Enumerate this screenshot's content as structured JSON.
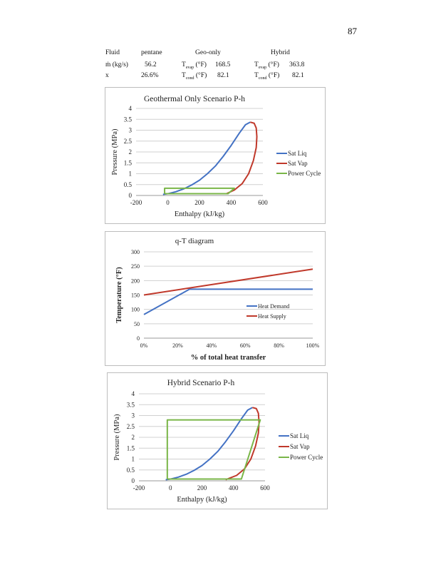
{
  "page_number": "87",
  "table": {
    "r1": {
      "c1": "Fluid",
      "c2": "pentane",
      "c3": "Geo-only",
      "c4": "Hybrid"
    },
    "r2": {
      "c1": "ṁ (kg/s)",
      "c2": "56.2",
      "geo_label": "T",
      "geo_sub": "evap",
      "geo_unit": " (°F)",
      "geo_val": "168.5",
      "hyb_label": "T",
      "hyb_sub": "evap",
      "hyb_unit": " (°F)",
      "hyb_val": "363.8"
    },
    "r3": {
      "c1": "x",
      "c2": "26.6%",
      "geo_label": "T",
      "geo_sub": "cond",
      "geo_unit": " (°F)",
      "geo_val": "82.1",
      "hyb_label": "T",
      "hyb_sub": "cond",
      "hyb_unit": " (°F)",
      "hyb_val": "82.1"
    }
  },
  "chart_data": [
    {
      "type": "line",
      "title": "Geothermal Only Scenario P-h",
      "xlabel": "Enthalpy (kJ/kg)",
      "ylabel": "Pressure (MPa)",
      "xlim": [
        -200,
        600
      ],
      "ylim": [
        0,
        4
      ],
      "xticks": [
        -200,
        0,
        200,
        400,
        600
      ],
      "yticks": [
        0,
        0.5,
        1,
        1.5,
        2,
        2.5,
        3,
        3.5,
        4
      ],
      "grid": true,
      "legend": "right",
      "series": [
        {
          "name": "Sat Liq",
          "color": "#4472c4",
          "points": [
            [
              -30,
              0.05
            ],
            [
              0,
              0.08
            ],
            [
              50,
              0.17
            ],
            [
              100,
              0.3
            ],
            [
              150,
              0.48
            ],
            [
              200,
              0.7
            ],
            [
              250,
              1.0
            ],
            [
              300,
              1.35
            ],
            [
              350,
              1.8
            ],
            [
              400,
              2.3
            ],
            [
              450,
              2.85
            ],
            [
              490,
              3.25
            ],
            [
              520,
              3.37
            ]
          ]
        },
        {
          "name": "Sat Vap",
          "color": "#c0392b",
          "points": [
            [
              520,
              3.37
            ],
            [
              545,
              3.32
            ],
            [
              558,
              3.1
            ],
            [
              562,
              2.7
            ],
            [
              558,
              2.2
            ],
            [
              540,
              1.6
            ],
            [
              510,
              1.0
            ],
            [
              470,
              0.55
            ],
            [
              420,
              0.25
            ],
            [
              370,
              0.08
            ]
          ]
        },
        {
          "name": "Power Cycle",
          "color": "#7ab648",
          "points": [
            [
              -20,
              0.08
            ],
            [
              -20,
              0.33
            ],
            [
              420,
              0.33
            ],
            [
              380,
              0.08
            ],
            [
              -20,
              0.08
            ]
          ]
        }
      ]
    },
    {
      "type": "line",
      "title": "q-T diagram",
      "xlabel": "% of total heat transfer",
      "ylabel": "Temperature (°F)",
      "xlim": [
        0,
        100
      ],
      "ylim": [
        0,
        300
      ],
      "xticks": [
        0,
        20,
        40,
        60,
        80,
        100
      ],
      "xtick_suffix": "%",
      "yticks": [
        0,
        50,
        100,
        150,
        200,
        250,
        300
      ],
      "grid": true,
      "legend": "center-right",
      "series": [
        {
          "name": "Heat Demand",
          "color": "#4472c4",
          "points": [
            [
              0,
              82
            ],
            [
              27,
              170
            ],
            [
              100,
              170
            ]
          ]
        },
        {
          "name": "Heat Supply",
          "color": "#c0392b",
          "points": [
            [
              0,
              150
            ],
            [
              100,
              240
            ]
          ]
        }
      ]
    },
    {
      "type": "line",
      "title": "Hybrid Scenario P-h",
      "xlabel": "Enthalpy (kJ/kg)",
      "ylabel": "Pressure (MPa)",
      "xlim": [
        -200,
        600
      ],
      "ylim": [
        0,
        4
      ],
      "xticks": [
        -200,
        0,
        200,
        400,
        600
      ],
      "yticks": [
        0,
        0.5,
        1,
        1.5,
        2,
        2.5,
        3,
        3.5,
        4
      ],
      "grid": true,
      "legend": "right",
      "series": [
        {
          "name": "Sat Liq",
          "color": "#4472c4",
          "points": [
            [
              -30,
              0.05
            ],
            [
              0,
              0.08
            ],
            [
              50,
              0.17
            ],
            [
              100,
              0.3
            ],
            [
              150,
              0.48
            ],
            [
              200,
              0.7
            ],
            [
              250,
              1.0
            ],
            [
              300,
              1.35
            ],
            [
              350,
              1.8
            ],
            [
              400,
              2.3
            ],
            [
              450,
              2.85
            ],
            [
              490,
              3.25
            ],
            [
              520,
              3.37
            ]
          ]
        },
        {
          "name": "Sat Vap",
          "color": "#c0392b",
          "points": [
            [
              520,
              3.37
            ],
            [
              545,
              3.32
            ],
            [
              558,
              3.1
            ],
            [
              562,
              2.7
            ],
            [
              558,
              2.2
            ],
            [
              540,
              1.6
            ],
            [
              510,
              1.0
            ],
            [
              470,
              0.55
            ],
            [
              420,
              0.25
            ],
            [
              350,
              0.05
            ]
          ]
        },
        {
          "name": "Power Cycle",
          "color": "#7ab648",
          "points": [
            [
              -20,
              0.08
            ],
            [
              -20,
              2.8
            ],
            [
              570,
              2.8
            ],
            [
              450,
              0.08
            ],
            [
              -20,
              0.08
            ]
          ]
        }
      ]
    }
  ]
}
